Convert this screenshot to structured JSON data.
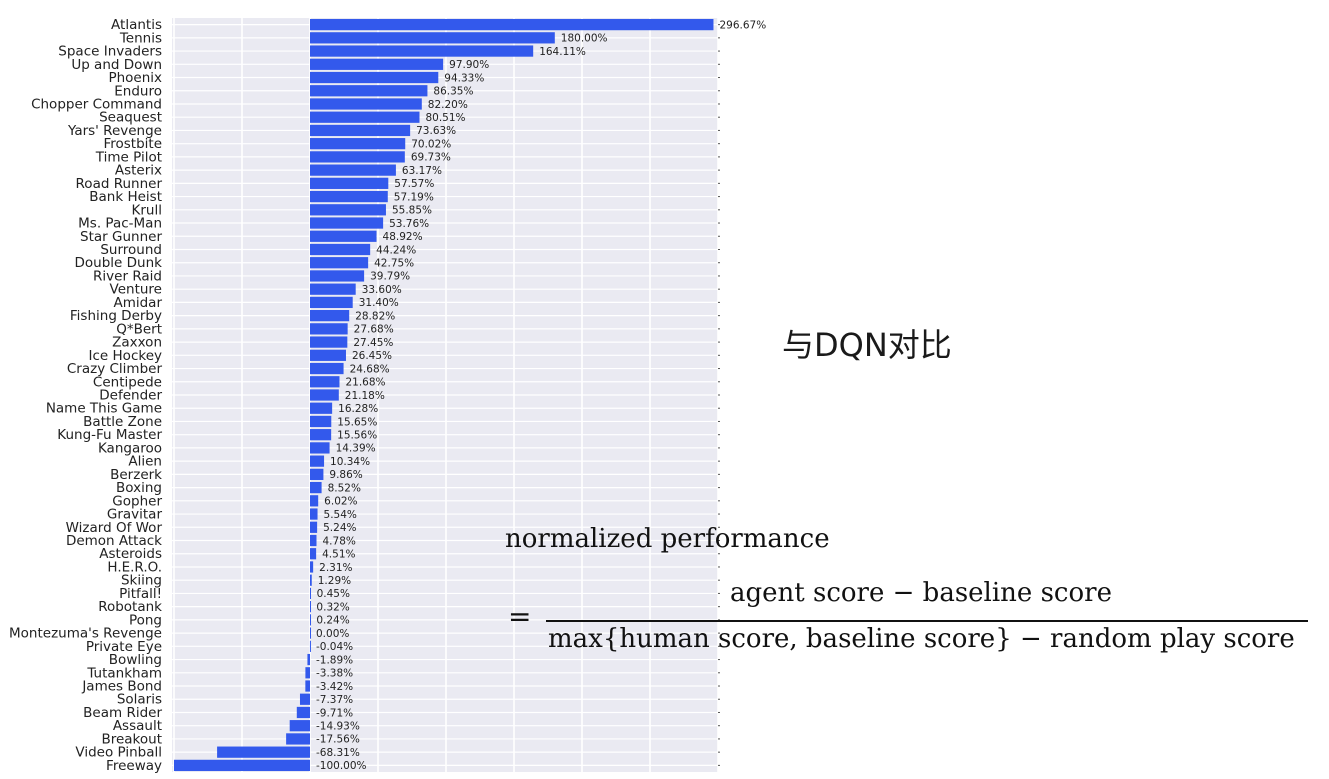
{
  "side_title": "与DQN对比",
  "formula": {
    "title": "normalized performance",
    "equals": "=",
    "numerator": "agent score  − baseline score",
    "denominator": "max{human score, baseline score}  − random play score"
  },
  "chart_data": {
    "type": "bar",
    "orientation": "horizontal",
    "xlim": [
      -100,
      300
    ],
    "grid": true,
    "bar_color": "#3359ec",
    "categories": [
      "Atlantis",
      "Tennis",
      "Space Invaders",
      "Up and Down",
      "Phoenix",
      "Enduro",
      "Chopper Command",
      "Seaquest",
      "Yars' Revenge",
      "Frostbite",
      "Time Pilot",
      "Asterix",
      "Road Runner",
      "Bank Heist",
      "Krull",
      "Ms. Pac-Man",
      "Star Gunner",
      "Surround",
      "Double Dunk",
      "River Raid",
      "Venture",
      "Amidar",
      "Fishing Derby",
      "Q*Bert",
      "Zaxxon",
      "Ice Hockey",
      "Crazy Climber",
      "Centipede",
      "Defender",
      "Name This Game",
      "Battle Zone",
      "Kung-Fu Master",
      "Kangaroo",
      "Alien",
      "Berzerk",
      "Boxing",
      "Gopher",
      "Gravitar",
      "Wizard Of Wor",
      "Demon Attack",
      "Asteroids",
      "H.E.R.O.",
      "Skiing",
      "Pitfall!",
      "Robotank",
      "Pong",
      "Montezuma's Revenge",
      "Private Eye",
      "Bowling",
      "Tutankham",
      "James Bond",
      "Solaris",
      "Beam Rider",
      "Assault",
      "Breakout",
      "Video Pinball",
      "Freeway"
    ],
    "values": [
      296.67,
      180.0,
      164.11,
      97.9,
      94.33,
      86.35,
      82.2,
      80.51,
      73.63,
      70.02,
      69.73,
      63.17,
      57.57,
      57.19,
      55.85,
      53.76,
      48.92,
      44.24,
      42.75,
      39.79,
      33.6,
      31.4,
      28.82,
      27.68,
      27.45,
      26.45,
      24.68,
      21.68,
      21.18,
      16.28,
      15.65,
      15.56,
      14.39,
      10.34,
      9.86,
      8.52,
      6.02,
      5.54,
      5.24,
      4.78,
      4.51,
      2.31,
      1.29,
      0.45,
      0.32,
      0.24,
      0.0,
      -0.04,
      -1.89,
      -3.38,
      -3.42,
      -7.37,
      -9.71,
      -14.93,
      -17.56,
      -68.31,
      -100.0
    ],
    "value_labels": [
      "296.67%",
      "180.00%",
      "164.11%",
      "97.90%",
      "94.33%",
      "86.35%",
      "82.20%",
      "80.51%",
      "73.63%",
      "70.02%",
      "69.73%",
      "63.17%",
      "57.57%",
      "57.19%",
      "55.85%",
      "53.76%",
      "48.92%",
      "44.24%",
      "42.75%",
      "39.79%",
      "33.60%",
      "31.40%",
      "28.82%",
      "27.68%",
      "27.45%",
      "26.45%",
      "24.68%",
      "21.68%",
      "21.18%",
      "16.28%",
      "15.65%",
      "15.56%",
      "14.39%",
      "10.34%",
      "9.86%",
      "8.52%",
      "6.02%",
      "5.54%",
      "5.24%",
      "4.78%",
      "4.51%",
      "2.31%",
      "1.29%",
      "0.45%",
      "0.32%",
      "0.24%",
      "0.00%",
      "-0.04%",
      "-1.89%",
      "-3.38%",
      "-3.42%",
      "-7.37%",
      "-9.71%",
      "-14.93%",
      "-17.56%",
      "-68.31%",
      "-100.00%"
    ]
  }
}
